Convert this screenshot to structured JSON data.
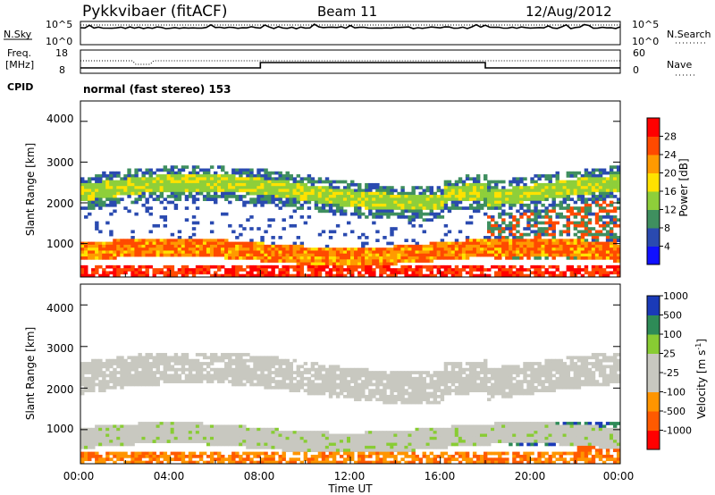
{
  "header": {
    "radar_title": "Pykkvibaer (fitACF)",
    "beam": "Beam 11",
    "date": "12/Aug/2012"
  },
  "noise_panel": {
    "left_label": "N.Sky",
    "left_ticks": [
      "10^5",
      "10^0"
    ],
    "right_label": "N.Search",
    "right_ticks": [
      "10^5",
      "10^0"
    ]
  },
  "freq_panel": {
    "left_label_line1": "Freq.",
    "left_label_line2": "[MHz]",
    "left_ticks": [
      "18",
      "8"
    ],
    "right_label": "Nave",
    "right_ticks": [
      "60",
      "0"
    ]
  },
  "cpid": {
    "label": "CPID",
    "text": "normal (fast stereo) 153"
  },
  "power_panel": {
    "ylabel": "Slant Range [km]",
    "yticks": [
      "4000",
      "3000",
      "2000",
      "1000"
    ],
    "colorbar_label": "Power [dB]",
    "colorbar_ticks": [
      "28",
      "24",
      "20",
      "16",
      "12",
      "8",
      "4"
    ]
  },
  "velocity_panel": {
    "ylabel": "Slant Range [km]",
    "yticks": [
      "4000",
      "3000",
      "2000",
      "1000"
    ],
    "colorbar_label": "Velocity [m s",
    "colorbar_sup": "-1",
    "colorbar_label_end": "]",
    "colorbar_ticks": [
      "1000",
      "500",
      "100",
      "25",
      "-25",
      "-100",
      "-500",
      "-1000"
    ]
  },
  "xaxis": {
    "xlabel": "Time UT",
    "ticks": [
      "00:00",
      "04:00",
      "08:00",
      "12:00",
      "16:00",
      "20:00",
      "00:00"
    ]
  },
  "chart_data": {
    "type": "heatmap",
    "title": "Pykkvibaer (fitACF)",
    "x_range_hours": [
      0,
      24
    ],
    "y_range_km": [
      180,
      4500
    ],
    "power_scale": {
      "colors": [
        "#1010ff",
        "#2a4ab0",
        "#3f8f5f",
        "#8ecf3a",
        "#ffe200",
        "#ff9a00",
        "#ff4a00",
        "#ff0000"
      ],
      "ticks": [
        4,
        8,
        12,
        16,
        20,
        24,
        28
      ]
    },
    "velocity_scale": {
      "colors": [
        "#ff0000",
        "#ff5a00",
        "#ff9500",
        "#c8c8c0",
        "#c8c8c0",
        "#88cc33",
        "#2e8b57",
        "#1a3ab8"
      ],
      "ticks": [
        -1000,
        -500,
        -100,
        -25,
        25,
        100,
        500,
        1000
      ]
    },
    "freq_step_hour": 8.0,
    "freq_return_hour": 18.0
  }
}
